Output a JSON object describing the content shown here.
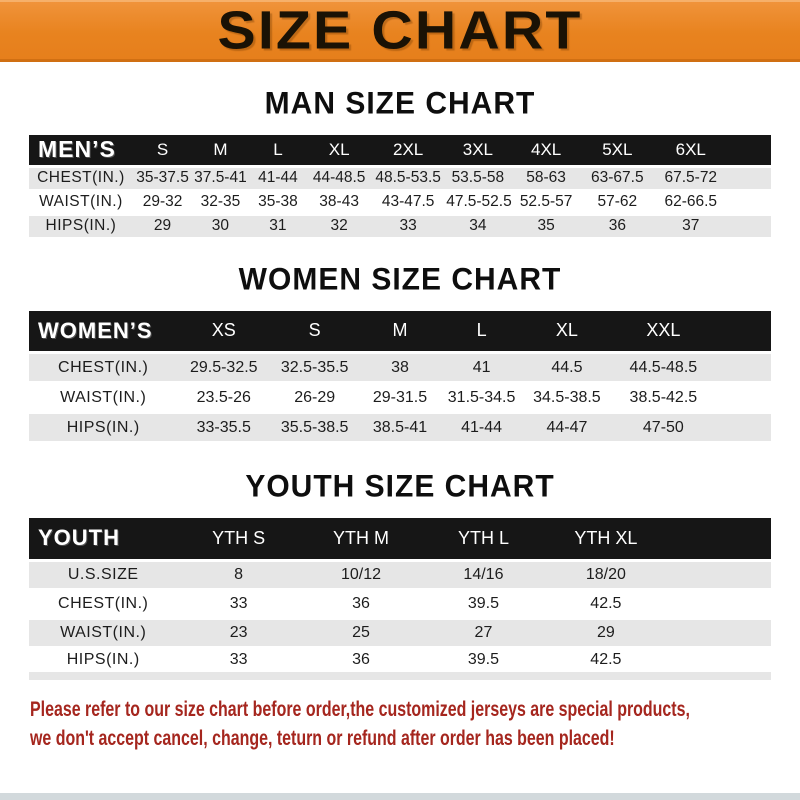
{
  "banner": {
    "title": "SIZE CHART",
    "bg_color": "#e8831f",
    "text_color": "#1a1205"
  },
  "colors": {
    "table_header_bg": "#161616",
    "table_header_text": "#ffffff",
    "row_stripe": "#e6e6e6",
    "footer_text": "#a5261e",
    "bottom_bar": "#d2d9dc"
  },
  "sections": [
    {
      "id": "men",
      "title": "MAN SIZE CHART",
      "table": {
        "header_label": "MEN’S",
        "columns": [
          "S",
          "M",
          "L",
          "XL",
          "2XL",
          "3XL",
          "4XL",
          "5XL",
          "6XL"
        ],
        "rows": [
          {
            "label": "CHEST(IN.)",
            "values": [
              "35-37.5",
              "37.5-41",
              "41-44",
              "44-48.5",
              "48.5-53.5",
              "53.5-58",
              "58-63",
              "63-67.5",
              "67.5-72"
            ]
          },
          {
            "label": "WAIST(IN.)",
            "values": [
              "29-32",
              "32-35",
              "35-38",
              "38-43",
              "43-47.5",
              "47.5-52.5",
              "52.5-57",
              "57-62",
              "62-66.5"
            ]
          },
          {
            "label": "HIPS(IN.)",
            "values": [
              "29",
              "30",
              "31",
              "32",
              "33",
              "34",
              "35",
              "36",
              "37"
            ]
          }
        ]
      }
    },
    {
      "id": "women",
      "title": "WOMEN SIZE CHART",
      "table": {
        "header_label": "WOMEN’S",
        "columns": [
          "XS",
          "S",
          "M",
          "L",
          "XL",
          "XXL"
        ],
        "rows": [
          {
            "label": "CHEST(IN.)",
            "values": [
              "29.5-32.5",
              "32.5-35.5",
              "38",
              "41",
              "44.5",
              "44.5-48.5"
            ]
          },
          {
            "label": "WAIST(IN.)",
            "values": [
              "23.5-26",
              "26-29",
              "29-31.5",
              "31.5-34.5",
              "34.5-38.5",
              "38.5-42.5"
            ]
          },
          {
            "label": "HIPS(IN.)",
            "values": [
              "33-35.5",
              "35.5-38.5",
              "38.5-41",
              "41-44",
              "44-47",
              "47-50"
            ]
          }
        ]
      }
    },
    {
      "id": "youth",
      "title": "YOUTH SIZE CHART",
      "table": {
        "header_label": "YOUTH",
        "columns": [
          "YTH S",
          "YTH M",
          "YTH L",
          "YTH XL"
        ],
        "rows": [
          {
            "label": "U.S.SIZE",
            "values": [
              "8",
              "10/12",
              "14/16",
              "18/20"
            ]
          },
          {
            "label": "CHEST(IN.)",
            "values": [
              "33",
              "36",
              "39.5",
              "42.5"
            ]
          },
          {
            "label": "WAIST(IN.)",
            "values": [
              "23",
              "25",
              "27",
              "29"
            ]
          },
          {
            "label": "HIPS(IN.)",
            "values": [
              "33",
              "36",
              "39.5",
              "42.5"
            ]
          }
        ]
      }
    }
  ],
  "footer": {
    "line1": "Please refer to our size chart before order,the customized jerseys are special products,",
    "line2": "we don't accept cancel, change, teturn or refund after order has been placed!"
  }
}
